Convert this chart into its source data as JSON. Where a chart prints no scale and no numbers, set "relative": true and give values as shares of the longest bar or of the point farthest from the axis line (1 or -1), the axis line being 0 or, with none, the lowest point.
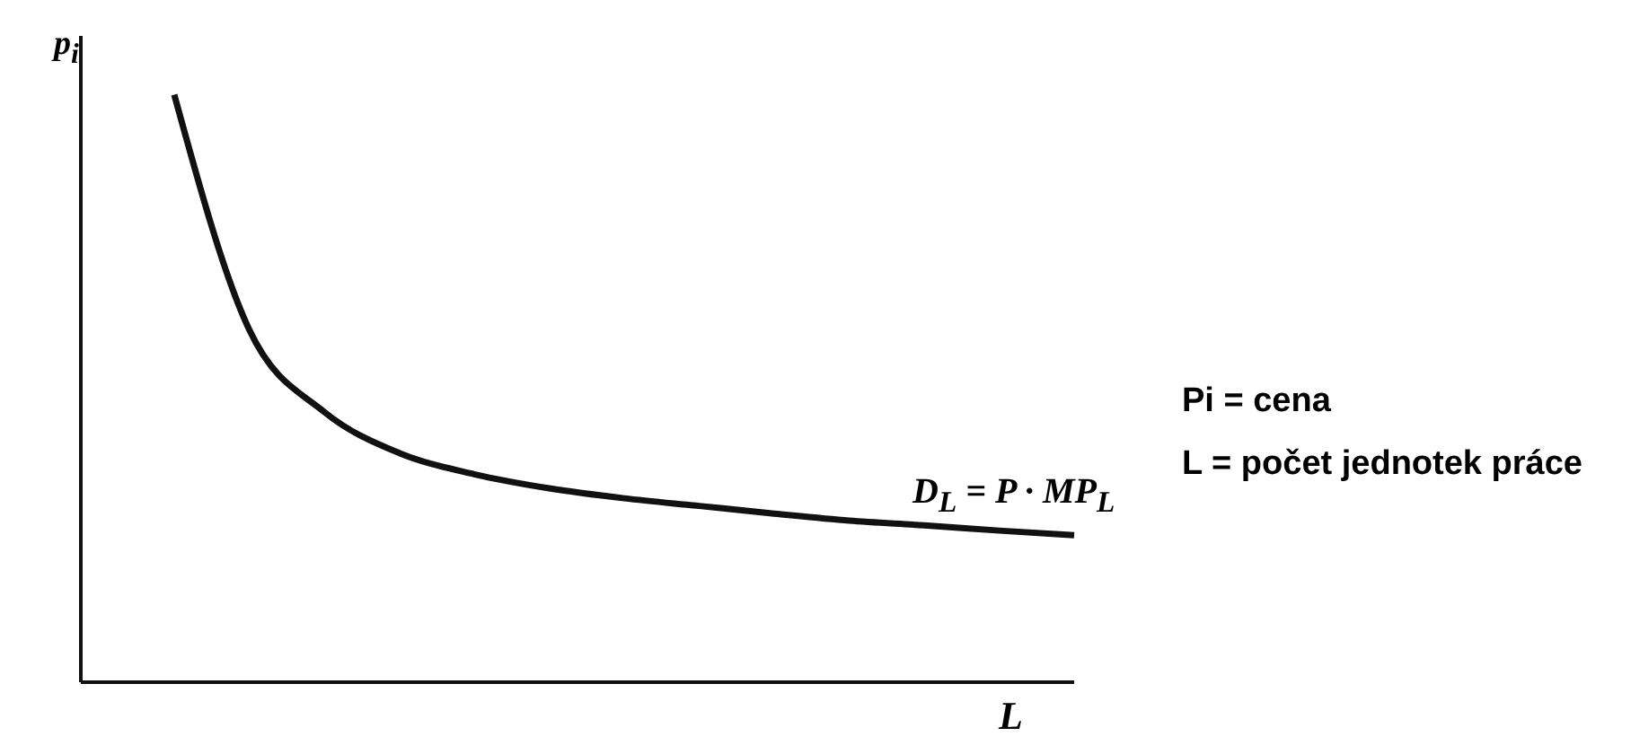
{
  "chart_data": {
    "type": "line",
    "relative": true,
    "marker": "none",
    "line_style": "solid",
    "ylabel": "p$_{i}$",
    "xlabel": "L",
    "annotations": [
      "D$_{L}$ = P · MP$_{L}$",
      "Pi = cena",
      "L = počet jednotek práce"
    ],
    "categories": [
      null,
      null,
      null,
      null,
      null,
      null,
      null,
      null,
      null,
      null,
      null,
      null,
      null
    ],
    "series": [
      {
        "color": "#111111",
        "values": [
          1.0,
          0.6,
          0.46,
          0.39,
          0.354,
          0.33,
          0.313,
          0.3,
          0.287,
          0.275,
          0.267,
          0.258,
          0.25
        ]
      }
    ]
  }
}
